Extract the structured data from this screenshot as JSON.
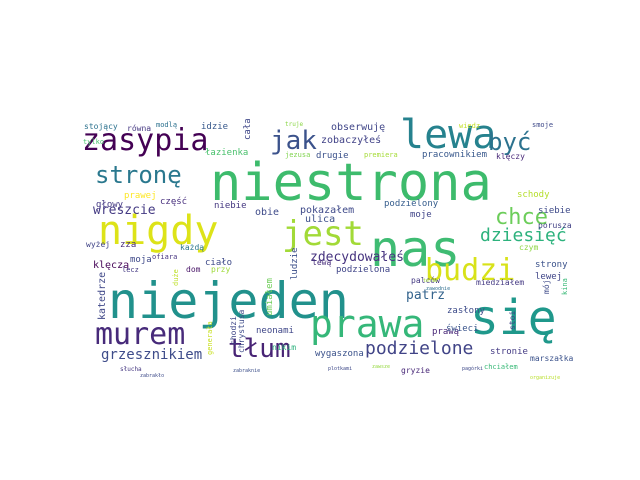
{
  "words": [
    {
      "text": "niestrona",
      "color": "#3dbb6c",
      "rotated": false
    },
    {
      "text": "nas",
      "color": "#3fbc73",
      "rotated": false
    },
    {
      "text": "niejeden",
      "color": "#21918c",
      "rotated": false
    },
    {
      "text": "się",
      "color": "#1f988b",
      "rotated": false
    },
    {
      "text": "nigdy",
      "color": "#dde318",
      "rotated": false
    },
    {
      "text": "prawa",
      "color": "#35b779",
      "rotated": false
    },
    {
      "text": "lewa",
      "color": "#26828e",
      "rotated": false
    },
    {
      "text": "zasypia",
      "color": "#440154",
      "rotated": false
    },
    {
      "text": "jest",
      "color": "#a2da37",
      "rotated": false
    },
    {
      "text": "murem",
      "color": "#472a7a",
      "rotated": false
    },
    {
      "text": "budzi",
      "color": "#d8e219",
      "rotated": false
    },
    {
      "text": "jak",
      "color": "#3b528b",
      "rotated": false
    },
    {
      "text": "być",
      "color": "#2c728e",
      "rotated": false
    },
    {
      "text": "stronę",
      "color": "#2a788e",
      "rotated": false
    },
    {
      "text": "tłum",
      "color": "#482475",
      "rotated": false
    },
    {
      "text": "chce",
      "color": "#6ccd5a",
      "rotated": false
    },
    {
      "text": "dziesięć",
      "color": "#2db27d",
      "rotated": false
    },
    {
      "text": "podzielone",
      "color": "#414487",
      "rotated": false
    },
    {
      "text": "grzesznikiem",
      "color": "#3e4c8a",
      "rotated": false
    },
    {
      "text": "wreszcie",
      "color": "#443a83",
      "rotated": false
    },
    {
      "text": "zdecydowałeś",
      "color": "#46337f",
      "rotated": false
    },
    {
      "text": "patrz",
      "color": "#33638d",
      "rotated": false
    },
    {
      "text": "pokazałem",
      "color": "#3e4989",
      "rotated": false
    },
    {
      "text": "obserwuję",
      "color": "#404688",
      "rotated": false
    },
    {
      "text": "zobaczyłeś",
      "color": "#414287",
      "rotated": false
    },
    {
      "text": "drugie",
      "color": "#3b518b",
      "rotated": false
    },
    {
      "text": "premiera",
      "color": "#a5db36",
      "rotated": false
    },
    {
      "text": "pracownikiem",
      "color": "#38588c",
      "rotated": false
    },
    {
      "text": "klęczy",
      "color": "#482878",
      "rotated": false
    },
    {
      "text": "schody",
      "color": "#b5de2b",
      "rotated": false
    },
    {
      "text": "siebie",
      "color": "#3e4a89",
      "rotated": false
    },
    {
      "text": "porusza",
      "color": "#424186",
      "rotated": false
    },
    {
      "text": "podzielony",
      "color": "#365d8d",
      "rotated": false
    },
    {
      "text": "moje",
      "color": "#404588",
      "rotated": false
    },
    {
      "text": "ulica",
      "color": "#3c4f8a",
      "rotated": false
    },
    {
      "text": "obie",
      "color": "#3e4a89",
      "rotated": false
    },
    {
      "text": "niebie",
      "color": "#453781",
      "rotated": false
    },
    {
      "text": "część",
      "color": "#472f7d",
      "rotated": false
    },
    {
      "text": "prawej",
      "color": "#fde725",
      "rotated": false
    },
    {
      "text": "głowy",
      "color": "#443983",
      "rotated": false
    },
    {
      "text": "zza",
      "color": "#472c7a",
      "rotated": false
    },
    {
      "text": "każdą",
      "color": "#2a768e",
      "rotated": false
    },
    {
      "text": "wyżej",
      "color": "#414487",
      "rotated": false
    },
    {
      "text": "ofiara",
      "color": "#46337f",
      "rotated": false
    },
    {
      "text": "moja",
      "color": "#3e4989",
      "rotated": false
    },
    {
      "text": "klęczą",
      "color": "#450457",
      "rotated": false
    },
    {
      "text": "ciało",
      "color": "#3e4a89",
      "rotated": false
    },
    {
      "text": "dom",
      "color": "#481467",
      "rotated": false
    },
    {
      "text": "przy",
      "color": "#9fda3a",
      "rotated": false
    },
    {
      "text": "ludzie",
      "color": "#3c4f8a",
      "rotated": false
    },
    {
      "text": "lewą",
      "color": "#472d7b",
      "rotated": false
    },
    {
      "text": "podzielona",
      "color": "#404588",
      "rotated": false
    },
    {
      "text": "palców",
      "color": "#443983",
      "rotated": false
    },
    {
      "text": "czym",
      "color": "#8ed645",
      "rotated": false
    },
    {
      "text": "strony",
      "color": "#3b528b",
      "rotated": false
    },
    {
      "text": "lewej",
      "color": "#404688",
      "rotated": false
    },
    {
      "text": "miedziałem",
      "color": "#443983",
      "rotated": false
    },
    {
      "text": "zasłony",
      "color": "#3e4c8a",
      "rotated": false
    },
    {
      "text": "prawą",
      "color": "#482677",
      "rotated": false
    },
    {
      "text": "świeci",
      "color": "#3a548c",
      "rotated": false
    },
    {
      "text": "gryzie",
      "color": "#482878",
      "rotated": false
    },
    {
      "text": "stronie",
      "color": "#443b84",
      "rotated": false
    },
    {
      "text": "wygaszona",
      "color": "#3b528b",
      "rotated": false
    },
    {
      "text": "neonami",
      "color": "#3f4788",
      "rotated": false
    },
    {
      "text": "nikim",
      "color": "#2db27d",
      "rotated": false
    },
    {
      "text": "chciałem",
      "color": "#38b977",
      "rotated": false
    },
    {
      "text": "marszałka",
      "color": "#3b528b",
      "rotated": false
    },
    {
      "text": "stojący",
      "color": "#2c728e",
      "rotated": false
    },
    {
      "text": "równa",
      "color": "#453882",
      "rotated": false
    },
    {
      "text": "modlą",
      "color": "#2c718e",
      "rotated": false
    },
    {
      "text": "idzie",
      "color": "#38598c",
      "rotated": false
    },
    {
      "text": "tylko",
      "color": "#4ac16d",
      "rotated": false
    },
    {
      "text": "łazienka",
      "color": "#4ac16d",
      "rotated": false
    },
    {
      "text": "cała",
      "color": "#3f4788",
      "rotated": false
    },
    {
      "text": "jezusa",
      "color": "#7fd34e",
      "rotated": false
    },
    {
      "text": "truje",
      "color": "#8bd646",
      "rotated": false
    },
    {
      "text": "wiedz",
      "color": "#c2df23",
      "rotated": false
    },
    {
      "text": "smoje",
      "color": "#3e4989",
      "rotated": false
    },
    {
      "text": "katedrze",
      "color": "#3f4788",
      "rotated": false
    },
    {
      "text": "lecz",
      "color": "#443983",
      "rotated": false
    },
    {
      "text": "duże",
      "color": "#bddf26",
      "rotated": false
    },
    {
      "text": "chodzi",
      "color": "#3f4788",
      "rotated": false
    },
    {
      "text": "chrystusa",
      "color": "#3e4c8a",
      "rotated": false
    },
    {
      "text": "umiałem",
      "color": "#6ece58",
      "rotated": false
    },
    {
      "text": "generała",
      "color": "#c8e020",
      "rotated": false
    },
    {
      "text": "słucha",
      "color": "#453781",
      "rotated": false
    },
    {
      "text": "zabrakło",
      "color": "#3e4c8a",
      "rotated": false
    },
    {
      "text": "zabraknie",
      "color": "#3c4f8a",
      "rotated": false
    },
    {
      "text": "plotkami",
      "color": "#3e4989",
      "rotated": false
    },
    {
      "text": "zawodnie",
      "color": "#2e6e8e",
      "rotated": false
    },
    {
      "text": "pagórki",
      "color": "#3e4989",
      "rotated": false
    },
    {
      "text": "stoi",
      "color": "#404688",
      "rotated": false
    },
    {
      "text": "kina",
      "color": "#38b977",
      "rotated": false
    },
    {
      "text": "mój",
      "color": "#3e4a89",
      "rotated": false
    },
    {
      "text": "organizuje",
      "color": "#b8de29",
      "rotated": false
    },
    {
      "text": "zawsze",
      "color": "#95d840",
      "rotated": false
    },
    {
      "text": "teraz",
      "color": "#a2da37",
      "rotated": false
    }
  ]
}
